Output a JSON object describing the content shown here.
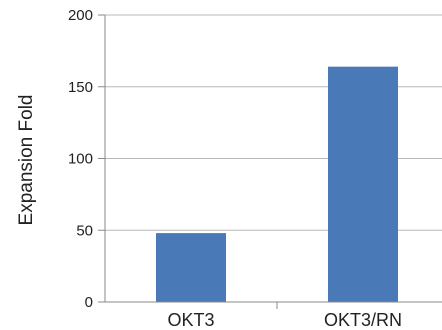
{
  "chart_data": {
    "type": "bar",
    "categories": [
      "OKT3",
      "OKT3/RN"
    ],
    "values": [
      48,
      164
    ],
    "ylabel": "Expansion  Fold",
    "xlabel": "",
    "ylim": [
      0,
      200
    ],
    "yticks": [
      0,
      50,
      100,
      150,
      200
    ],
    "grid": true,
    "bar_color": "#4a79b7"
  }
}
